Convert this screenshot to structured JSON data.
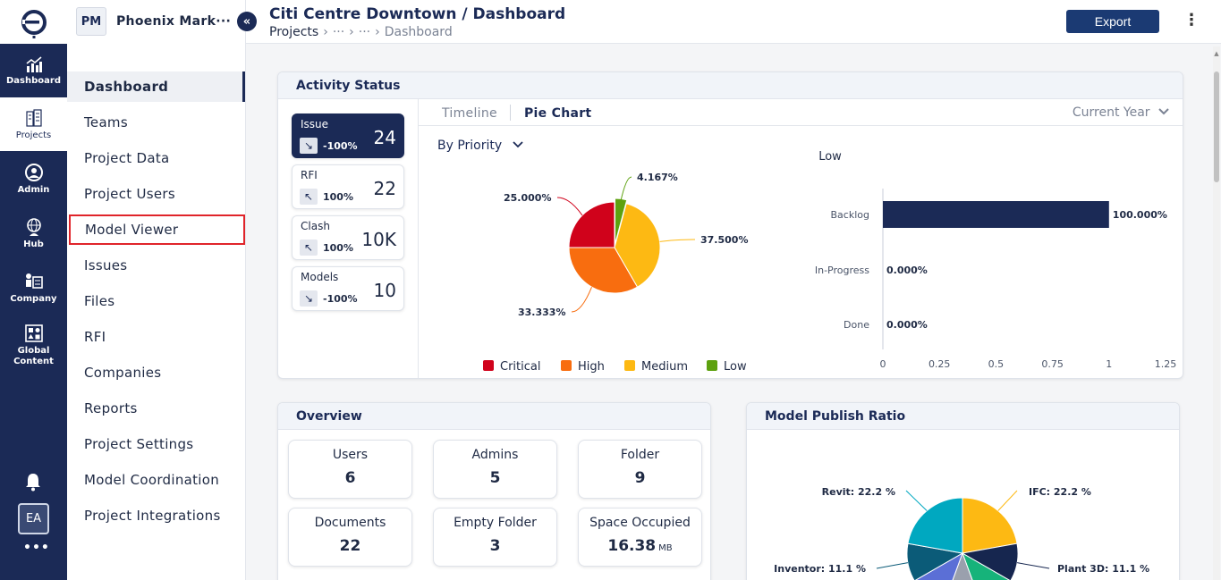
{
  "rail": {
    "items": [
      {
        "label": "Dashboard",
        "icon": "chart-up-icon"
      },
      {
        "label": "Projects",
        "icon": "buildings-icon"
      },
      {
        "label": "Admin",
        "icon": "user-circle-icon"
      },
      {
        "label": "Hub",
        "icon": "globe-person-icon"
      },
      {
        "label": "Company",
        "icon": "company-icon"
      },
      {
        "label": "Global Content",
        "icon": "shapes-icon"
      }
    ],
    "user_initials": "EA",
    "more": "•••"
  },
  "project": {
    "initials": "PM",
    "name": "Phoenix Mark···"
  },
  "nav": {
    "items": [
      "Dashboard",
      "Teams",
      "Project Data",
      "Project Users",
      "Model Viewer",
      "Issues",
      "Files",
      "RFI",
      "Companies",
      "Reports",
      "Project Settings",
      "Model Coordination",
      "Project Integrations"
    ]
  },
  "header": {
    "title": "Citi Centre Downtown / Dashboard",
    "breadcrumb": [
      "Projects",
      "›",
      "···",
      "›",
      "···",
      "›",
      "Dashboard"
    ],
    "export_label": "Export",
    "more": "⋮"
  },
  "activity": {
    "title": "Activity Status",
    "stats": [
      {
        "label": "Issue",
        "arrow": "↘",
        "pct": "-100%",
        "value": "24"
      },
      {
        "label": "RFI",
        "arrow": "↖",
        "pct": "100%",
        "value": "22"
      },
      {
        "label": "Clash",
        "arrow": "↖",
        "pct": "100%",
        "value": "10K"
      },
      {
        "label": "Models",
        "arrow": "↘",
        "pct": "-100%",
        "value": "10"
      }
    ],
    "tabs": [
      "Timeline",
      "Pie Chart"
    ],
    "year_select": "Current Year",
    "priority_select": "By Priority"
  },
  "overview": {
    "title": "Overview",
    "items": [
      {
        "label": "Users",
        "value": "6",
        "unit": ""
      },
      {
        "label": "Admins",
        "value": "5",
        "unit": ""
      },
      {
        "label": "Folder",
        "value": "9",
        "unit": ""
      },
      {
        "label": "Documents",
        "value": "22",
        "unit": ""
      },
      {
        "label": "Empty Folder",
        "value": "3",
        "unit": ""
      },
      {
        "label": "Space Occupied",
        "value": "16.38",
        "unit": "MB"
      }
    ]
  },
  "publish": {
    "title": "Model Publish Ratio"
  },
  "chart_data": [
    {
      "type": "pie",
      "title": "",
      "categories": [
        "Critical",
        "High",
        "Medium",
        "Low"
      ],
      "values": [
        25.0,
        33.333,
        37.5,
        4.167
      ],
      "value_labels": [
        "25.000%",
        "33.333%",
        "37.500%",
        "4.167%"
      ],
      "colors": [
        "#d0021b",
        "#f86d0f",
        "#fdb913",
        "#5da10f"
      ],
      "legend": "bottom"
    },
    {
      "type": "bar",
      "orientation": "horizontal",
      "title": "Low",
      "categories": [
        "Backlog",
        "In-Progress",
        "Done"
      ],
      "values": [
        1.0,
        0.0,
        0.0
      ],
      "value_labels": [
        "100.000%",
        "0.000%",
        "0.000%"
      ],
      "xlim": [
        0,
        1.25
      ],
      "xticks": [
        "0",
        "0.25",
        "0.5",
        "0.75",
        "1",
        "1.25"
      ],
      "color": "#1b2a56"
    },
    {
      "type": "pie",
      "title": "",
      "categories": [
        "IFC",
        "Plant 3D",
        "Inventor",
        "Revit"
      ],
      "values": [
        22.2,
        11.1,
        11.1,
        22.2
      ],
      "value_labels": [
        "IFC: 22.2 %",
        "Plant 3D: 11.1 %",
        "Inventor: 11.1 %",
        "Revit: 22.2 %"
      ],
      "colors": [
        "#fdb913",
        "#16264f",
        "#0b5b78",
        "#00a8c0"
      ]
    }
  ]
}
